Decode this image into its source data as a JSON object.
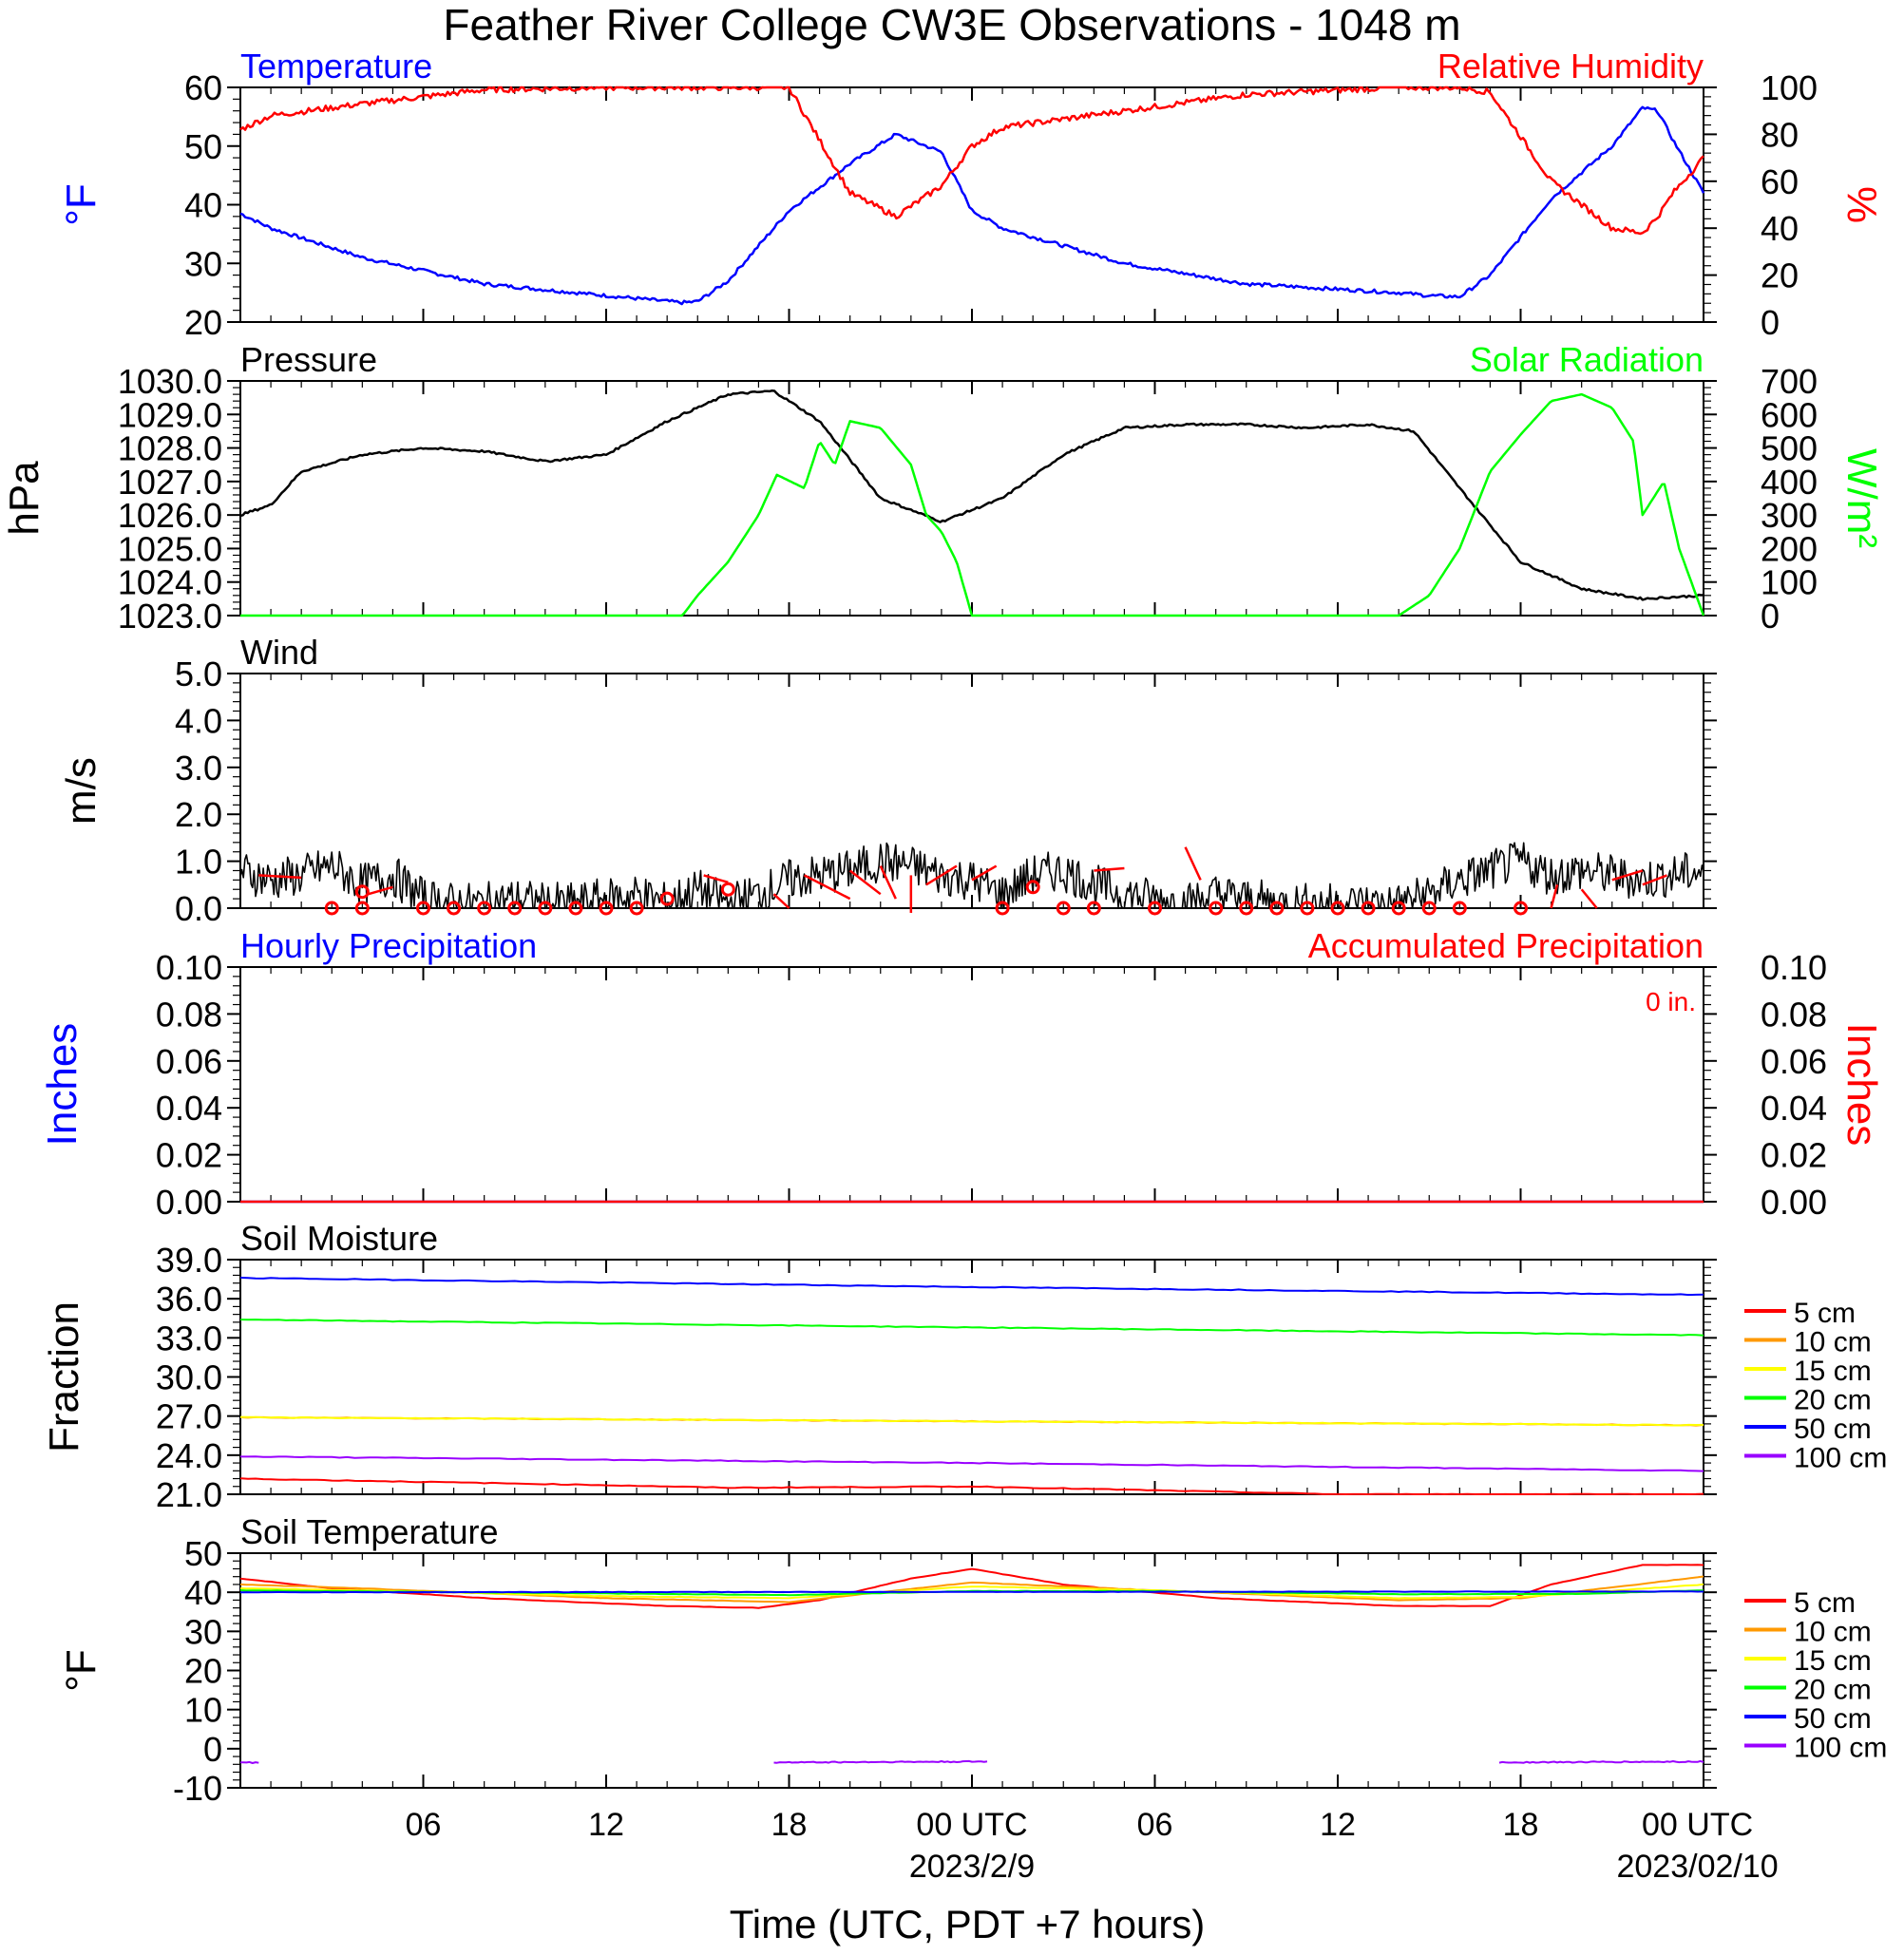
{
  "page": {
    "title": "Feather River College CW3E Observations - 1048 m",
    "x_axis_title": "Time (UTC, PDT +7 hours)",
    "x_ticks": [
      "06",
      "12",
      "18",
      "00 UTC",
      "06",
      "12",
      "18",
      "00 UTC"
    ],
    "x_dates": [
      "2023/2/9",
      "2023/02/10"
    ]
  },
  "colors": {
    "temperature": "#0000ff",
    "humidity": "#ff0000",
    "pressure": "#000000",
    "solar": "#00ff00",
    "wind": "#000000",
    "wind_barb": "#ff0000",
    "depth_5": "#ff0000",
    "depth_10": "#ff9900",
    "depth_15": "#ffff00",
    "depth_20": "#00ff00",
    "depth_50": "#0000ff",
    "depth_100": "#9900ff"
  },
  "chart_data": [
    {
      "id": "temp-rh",
      "type": "line",
      "left_title": "Temperature",
      "right_title": "Relative Humidity",
      "ylabel": "°F",
      "y2label": "%",
      "ylim": [
        20,
        60
      ],
      "y2lim": [
        0,
        100
      ],
      "yticks": [
        "60",
        "50",
        "40",
        "30",
        "20"
      ],
      "y2ticks": [
        "100",
        "80",
        "60",
        "40",
        "20",
        "0"
      ],
      "x_hours": [
        0,
        1,
        4,
        8,
        12,
        14.5,
        15,
        16,
        17,
        18,
        20,
        21.5,
        23,
        24,
        25,
        29,
        33,
        38,
        39,
        40,
        41,
        43,
        45,
        46,
        46.5,
        47,
        48
      ],
      "series": [
        {
          "name": "Temperature",
          "axis": "left",
          "color_key": "temperature",
          "values": [
            38.5,
            36,
            31,
            26.5,
            24.5,
            23.3,
            23.5,
            27,
            33,
            39,
            47,
            52,
            49,
            39,
            36,
            30,
            26.5,
            25,
            24.5,
            24.3,
            28,
            41,
            50,
            56.5,
            56,
            51,
            42
          ]
        },
        {
          "name": "Relative Humidity",
          "axis": "right",
          "color_key": "humidity",
          "values": [
            82,
            88,
            93,
            99,
            100,
            100,
            100,
            100,
            100,
            100,
            55,
            45,
            58,
            75,
            83,
            90,
            97,
            100,
            100,
            100,
            98,
            60,
            40,
            38,
            45,
            55,
            70
          ]
        }
      ]
    },
    {
      "id": "pressure-solar",
      "type": "line",
      "left_title": "Pressure",
      "right_title": "Solar Radiation",
      "ylabel": "hPa",
      "y2label": "W/m²",
      "ylim": [
        1023,
        1030
      ],
      "y2lim": [
        0,
        700
      ],
      "yticks": [
        "1030.0",
        "1029.0",
        "1028.0",
        "1027.0",
        "1026.0",
        "1025.0",
        "1024.0",
        "1023.0"
      ],
      "y2ticks": [
        "700",
        "600",
        "500",
        "400",
        "300",
        "200",
        "100",
        "0"
      ],
      "series": [
        {
          "name": "Pressure",
          "axis": "left",
          "color_key": "pressure",
          "x_hours": [
            0,
            1,
            2,
            4,
            6,
            8,
            10,
            12,
            14,
            16,
            17.5,
            19,
            21,
            23,
            25,
            27,
            29,
            31,
            33,
            35,
            37,
            38.5,
            40,
            42,
            44,
            46,
            48
          ],
          "values": [
            1026.0,
            1026.3,
            1027.3,
            1027.8,
            1028.0,
            1027.9,
            1027.6,
            1027.8,
            1028.8,
            1029.6,
            1029.7,
            1028.8,
            1026.5,
            1025.8,
            1026.5,
            1027.8,
            1028.6,
            1028.7,
            1028.7,
            1028.6,
            1028.7,
            1028.5,
            1026.8,
            1024.6,
            1023.8,
            1023.5,
            1023.6
          ]
        },
        {
          "name": "Solar Radiation",
          "axis": "right",
          "color_key": "solar",
          "x_hours": [
            0,
            14.5,
            15,
            16,
            17,
            17.6,
            18.5,
            19,
            19.5,
            20,
            21,
            22,
            22.5,
            23,
            23.5,
            24,
            38,
            39,
            40,
            41,
            42,
            43,
            44,
            45,
            45.7,
            46,
            46.7,
            47.2,
            48
          ],
          "values": [
            0,
            0,
            60,
            160,
            300,
            420,
            380,
            520,
            450,
            580,
            560,
            450,
            300,
            250,
            160,
            0,
            0,
            60,
            200,
            430,
            540,
            640,
            660,
            620,
            520,
            300,
            400,
            200,
            0
          ]
        }
      ]
    },
    {
      "id": "wind",
      "type": "line",
      "left_title": "Wind",
      "ylabel": "m/s",
      "ylim": [
        0,
        5
      ],
      "yticks": [
        "5.0",
        "4.0",
        "3.0",
        "2.0",
        "1.0",
        "0.0"
      ],
      "series": [
        {
          "name": "Wind",
          "axis": "left",
          "color_key": "wind",
          "x_hours": [
            0,
            1,
            2,
            3,
            4,
            5,
            6,
            7,
            8,
            9,
            10,
            11,
            12,
            13,
            14,
            15,
            16,
            17,
            18,
            19,
            20,
            21,
            22,
            23,
            24,
            25,
            26,
            27,
            28,
            29,
            30,
            31,
            32,
            33,
            34,
            35,
            36,
            37,
            38,
            39,
            40,
            41,
            42,
            43,
            44,
            45,
            46,
            47,
            48
          ],
          "values": [
            0.8,
            0.6,
            0.7,
            0.9,
            0.5,
            0.7,
            0.2,
            0.1,
            0.1,
            0.2,
            0.1,
            0.1,
            0.2,
            0.3,
            0.1,
            0.4,
            0.1,
            0.3,
            0.6,
            0.7,
            0.8,
            1.0,
            0.9,
            0.7,
            0.6,
            0.3,
            0.7,
            0.8,
            0.5,
            0.3,
            0.2,
            0.1,
            0.3,
            0.2,
            0.1,
            0.1,
            0.1,
            0.1,
            0.1,
            0.3,
            0.6,
            0.8,
            1.0,
            0.7,
            0.8,
            0.7,
            0.6,
            0.7,
            0.8
          ]
        }
      ]
    },
    {
      "id": "precip",
      "type": "line",
      "left_title": "Hourly Precipitation",
      "right_title": "Accumulated Precipitation",
      "annotation": "0 in.",
      "ylabel": "Inches",
      "y2label": "Inches",
      "ylim": [
        0,
        0.1
      ],
      "y2lim": [
        0,
        0.1
      ],
      "yticks": [
        "0.10",
        "0.08",
        "0.06",
        "0.04",
        "0.02",
        "0.00"
      ],
      "y2ticks": [
        "0.10",
        "0.08",
        "0.06",
        "0.04",
        "0.02",
        "0.00"
      ],
      "series": [
        {
          "name": "Hourly Precipitation",
          "axis": "left",
          "color_key": "temperature",
          "x_hours": [
            0,
            48
          ],
          "values": [
            0,
            0
          ]
        },
        {
          "name": "Accumulated Precipitation",
          "axis": "right",
          "color_key": "humidity",
          "x_hours": [
            0,
            48
          ],
          "values": [
            0,
            0
          ]
        }
      ]
    },
    {
      "id": "soil-moisture",
      "type": "line",
      "left_title": "Soil Moisture",
      "ylabel": "Fraction",
      "ylim": [
        21,
        39
      ],
      "yticks": [
        "39.0",
        "36.0",
        "33.0",
        "30.0",
        "27.0",
        "24.0",
        "21.0"
      ],
      "legend": [
        "5 cm",
        "10 cm",
        "15 cm",
        "20 cm",
        "50 cm",
        "100 cm"
      ],
      "series": [
        {
          "name": "5 cm",
          "color_key": "depth_5",
          "x_hours": [
            0,
            12,
            16,
            24,
            32,
            36,
            48
          ],
          "values": [
            22.2,
            21.7,
            21.5,
            21.6,
            21.2,
            21.0,
            21.0
          ]
        },
        {
          "name": "10 cm",
          "color_key": "depth_10",
          "x_hours": [
            0,
            48
          ],
          "values": [
            26.9,
            26.3
          ]
        },
        {
          "name": "15 cm",
          "color_key": "depth_15",
          "x_hours": [
            0,
            24,
            48
          ],
          "values": [
            26.9,
            26.6,
            26.3
          ]
        },
        {
          "name": "20 cm",
          "color_key": "depth_20",
          "x_hours": [
            0,
            24,
            48
          ],
          "values": [
            34.4,
            33.8,
            33.2
          ]
        },
        {
          "name": "50 cm",
          "color_key": "depth_50",
          "x_hours": [
            0,
            24,
            48
          ],
          "values": [
            37.6,
            36.9,
            36.3
          ]
        },
        {
          "name": "100 cm",
          "color_key": "depth_100",
          "x_hours": [
            0,
            24,
            48
          ],
          "values": [
            23.9,
            23.4,
            22.8
          ]
        }
      ]
    },
    {
      "id": "soil-temp",
      "type": "line",
      "left_title": "Soil Temperature",
      "ylabel": "°F",
      "ylim": [
        -10,
        50
      ],
      "yticks": [
        "50",
        "40",
        "30",
        "20",
        "10",
        "0",
        "-10"
      ],
      "legend": [
        "5 cm",
        "10 cm",
        "15 cm",
        "20 cm",
        "50 cm",
        "100 cm"
      ],
      "series": [
        {
          "name": "5 cm",
          "color_key": "depth_5",
          "x_hours": [
            0,
            3,
            8,
            14,
            17,
            19,
            22,
            24,
            27,
            32,
            38,
            41,
            43,
            46,
            48
          ],
          "values": [
            43.5,
            41,
            38.5,
            36.5,
            36,
            38,
            43.5,
            46,
            42,
            38.5,
            36.5,
            36.5,
            42,
            47,
            47
          ]
        },
        {
          "name": "10 cm",
          "color_key": "depth_10",
          "x_hours": [
            0,
            4,
            12,
            18,
            24,
            30,
            38,
            42,
            48
          ],
          "values": [
            42,
            41,
            38.5,
            37.5,
            42.5,
            40.5,
            38,
            38.5,
            44
          ]
        },
        {
          "name": "15 cm",
          "color_key": "depth_15",
          "x_hours": [
            0,
            4,
            12,
            18,
            24,
            30,
            38,
            42,
            48
          ],
          "values": [
            41,
            40.5,
            39,
            38.5,
            41.5,
            40.5,
            38.5,
            38.8,
            42
          ]
        },
        {
          "name": "20 cm",
          "color_key": "depth_20",
          "x_hours": [
            0,
            12,
            18,
            24,
            30,
            38,
            44,
            48
          ],
          "values": [
            40.5,
            39.7,
            39.3,
            40.3,
            40.3,
            39.5,
            39.6,
            40.5
          ]
        },
        {
          "name": "50 cm",
          "color_key": "depth_50",
          "x_hours": [
            0,
            48
          ],
          "values": [
            40,
            40.2
          ]
        },
        {
          "name": "100 cm",
          "color_key": "depth_100",
          "segments": [
            {
              "x_hours": [
                0,
                0.6
              ],
              "values": [
                -3.5,
                -3.6
              ]
            },
            {
              "x_hours": [
                17.5,
                24.5
              ],
              "values": [
                -3.5,
                -3.3
              ]
            },
            {
              "x_hours": [
                41.3,
                48
              ],
              "values": [
                -3.5,
                -3.3
              ]
            }
          ]
        }
      ]
    }
  ]
}
